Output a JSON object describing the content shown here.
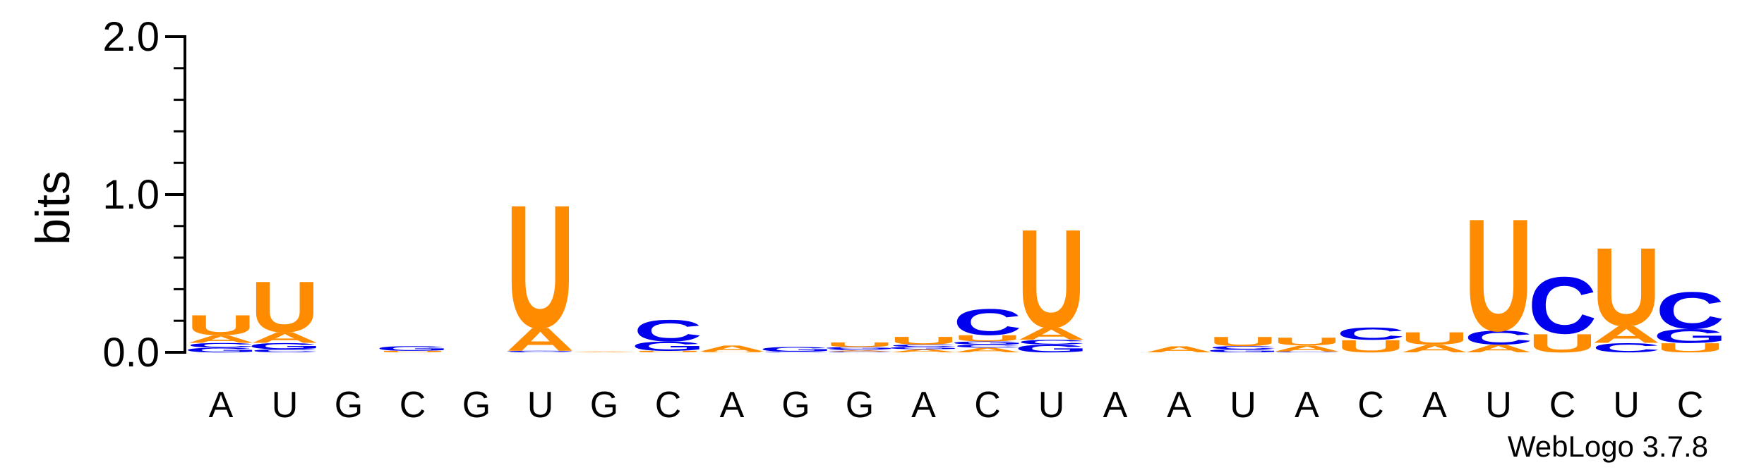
{
  "chart_data": {
    "type": "sequence-logo",
    "ylabel": "bits",
    "ylim": [
      0,
      2
    ],
    "yticks": [
      "0.0",
      "1.0",
      "2.0"
    ],
    "watermark": "WebLogo 3.7.8",
    "colors": {
      "A": "#ff8c00",
      "U": "#ff8c00",
      "G": "#0000ee",
      "C": "#0000ee"
    },
    "positions": [
      {
        "label": "A",
        "stack": [
          [
            "G",
            0.03
          ],
          [
            "C",
            0.03
          ],
          [
            "A",
            0.05
          ],
          [
            "U",
            0.13
          ]
        ]
      },
      {
        "label": "U",
        "stack": [
          [
            "C",
            0.02
          ],
          [
            "G",
            0.04
          ],
          [
            "A",
            0.07
          ],
          [
            "U",
            0.33
          ]
        ]
      },
      {
        "label": "G",
        "stack": []
      },
      {
        "label": "C",
        "stack": [
          [
            "U",
            0.01
          ],
          [
            "G",
            0.03
          ]
        ]
      },
      {
        "label": "G",
        "stack": []
      },
      {
        "label": "U",
        "stack": [
          [
            "C",
            0.005
          ],
          [
            "G",
            0.005
          ],
          [
            "A",
            0.15
          ],
          [
            "U",
            0.8
          ]
        ]
      },
      {
        "label": "G",
        "stack": [
          [
            "A",
            0.005
          ]
        ]
      },
      {
        "label": "C",
        "stack": [
          [
            "U",
            0.01
          ],
          [
            "G",
            0.06
          ],
          [
            "C",
            0.14
          ]
        ]
      },
      {
        "label": "A",
        "stack": [
          [
            "U",
            0.005
          ],
          [
            "A",
            0.04
          ]
        ]
      },
      {
        "label": "G",
        "stack": [
          [
            "C",
            0.005
          ],
          [
            "G",
            0.03
          ]
        ]
      },
      {
        "label": "G",
        "stack": [
          [
            "C",
            0.005
          ],
          [
            "A",
            0.008
          ],
          [
            "C",
            0.008
          ],
          [
            "G",
            0.013
          ],
          [
            "U",
            0.03
          ]
        ]
      },
      {
        "label": "A",
        "stack": [
          [
            "A",
            0.02
          ],
          [
            "G",
            0.015
          ],
          [
            "C",
            0.015
          ],
          [
            "U",
            0.05
          ]
        ]
      },
      {
        "label": "C",
        "stack": [
          [
            "A",
            0.03
          ],
          [
            "C",
            0.02
          ],
          [
            "G",
            0.02
          ],
          [
            "U",
            0.04
          ],
          [
            "C",
            0.17
          ]
        ]
      },
      {
        "label": "U",
        "stack": [
          [
            "G",
            0.05
          ],
          [
            "C",
            0.03
          ],
          [
            "A",
            0.08
          ],
          [
            "U",
            0.64
          ]
        ]
      },
      {
        "label": "A",
        "stack": []
      },
      {
        "label": "A",
        "stack": [
          [
            "A",
            0.04
          ]
        ]
      },
      {
        "label": "U",
        "stack": [
          [
            "G",
            0.02
          ],
          [
            "C",
            0.02
          ],
          [
            "U",
            0.06
          ]
        ]
      },
      {
        "label": "A",
        "stack": [
          [
            "C",
            0.005
          ],
          [
            "A",
            0.04
          ],
          [
            "U",
            0.05
          ]
        ]
      },
      {
        "label": "C",
        "stack": [
          [
            "U",
            0.08
          ],
          [
            "C",
            0.08
          ]
        ]
      },
      {
        "label": "A",
        "stack": [
          [
            "A",
            0.05
          ],
          [
            "U",
            0.08
          ]
        ]
      },
      {
        "label": "U",
        "stack": [
          [
            "A",
            0.05
          ],
          [
            "C",
            0.09
          ],
          [
            "U",
            0.73
          ]
        ]
      },
      {
        "label": "C",
        "stack": [
          [
            "U",
            0.12
          ],
          [
            "C",
            0.37
          ]
        ]
      },
      {
        "label": "U",
        "stack": [
          [
            "C",
            0.06
          ],
          [
            "A",
            0.11
          ],
          [
            "U",
            0.51
          ]
        ]
      },
      {
        "label": "C",
        "stack": [
          [
            "U",
            0.06
          ],
          [
            "G",
            0.09
          ],
          [
            "C",
            0.24
          ]
        ]
      }
    ]
  }
}
